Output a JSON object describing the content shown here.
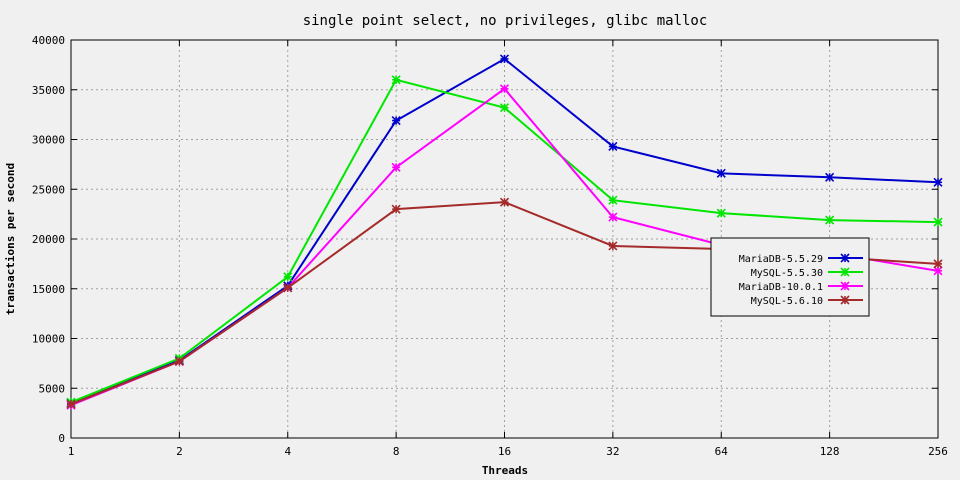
{
  "chart_data": {
    "type": "line",
    "title": "single point select, no privileges, glibc malloc",
    "xlabel": "Threads",
    "ylabel": "transactions per second",
    "categories": [
      "1",
      "2",
      "4",
      "8",
      "16",
      "32",
      "64",
      "128",
      "256"
    ],
    "y_ticks": [
      "0",
      "5000",
      "10000",
      "15000",
      "20000",
      "25000",
      "30000",
      "35000",
      "40000"
    ],
    "ylim": [
      0,
      40000
    ],
    "x_scale": "log2",
    "grid": true,
    "legend_position": "right",
    "series": [
      {
        "name": "MariaDB-5.5.29",
        "color": "#0000cc",
        "values": [
          3500,
          7800,
          15300,
          31900,
          38100,
          29300,
          26600,
          26200,
          25700
        ]
      },
      {
        "name": "MySQL-5.5.30",
        "color": "#00e600",
        "values": [
          3600,
          8000,
          16200,
          36000,
          33200,
          23900,
          22600,
          21900,
          21700
        ]
      },
      {
        "name": "MariaDB-10.0.1",
        "color": "#ff00ff",
        "values": [
          3300,
          7700,
          15100,
          27200,
          35100,
          22200,
          19400,
          18600,
          16800
        ]
      },
      {
        "name": "MySQL-5.6.10",
        "color": "#a52a2a",
        "values": [
          3400,
          7700,
          15100,
          23000,
          23700,
          19300,
          19000,
          18200,
          17500
        ]
      }
    ]
  }
}
